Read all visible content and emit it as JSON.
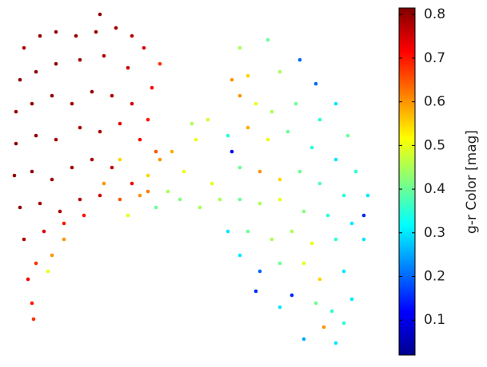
{
  "chart_data": {
    "type": "scatter",
    "colorbar_label": "g-r Color [mag]",
    "clim": [
      0.02,
      0.815
    ],
    "colorbar_ticks": [
      0.1,
      0.2,
      0.3,
      0.4,
      0.5,
      0.6,
      0.7,
      0.8
    ],
    "colormap": "jet",
    "xlim": [
      0,
      460
    ],
    "ylim": [
      0,
      430
    ],
    "x": [
      20,
      40,
      60,
      85,
      110,
      135,
      155,
      170,
      190,
      15,
      35,
      60,
      90,
      120,
      150,
      180,
      10,
      30,
      55,
      80,
      105,
      130,
      155,
      175,
      10,
      35,
      60,
      90,
      115,
      140,
      165,
      185,
      8,
      30,
      55,
      80,
      105,
      130,
      155,
      175,
      15,
      40,
      65,
      90,
      115,
      140,
      165,
      20,
      45,
      70,
      95,
      35,
      55,
      25,
      30,
      32,
      50,
      70,
      115,
      140,
      120,
      190,
      205,
      220,
      235,
      230,
      250,
      200,
      215,
      185,
      240,
      255,
      150,
      175,
      290,
      325,
      365,
      280,
      300,
      340,
      385,
      410,
      290,
      310,
      330,
      360,
      390,
      425,
      275,
      300,
      325,
      350,
      380,
      410,
      435,
      280,
      290,
      315,
      340,
      365,
      390,
      420,
      450,
      265,
      290,
      315,
      340,
      370,
      400,
      430,
      445,
      275,
      300,
      330,
      355,
      380,
      410,
      445,
      290,
      315,
      340,
      370,
      390,
      420,
      310,
      355,
      385,
      405,
      430,
      340,
      370,
      395,
      410,
      420
    ],
    "y": [
      380,
      395,
      400,
      395,
      400,
      405,
      395,
      380,
      360,
      340,
      350,
      360,
      365,
      370,
      355,
      330,
      300,
      310,
      320,
      310,
      325,
      320,
      310,
      290,
      260,
      270,
      265,
      280,
      275,
      285,
      265,
      250,
      220,
      225,
      215,
      230,
      240,
      230,
      210,
      200,
      180,
      185,
      175,
      190,
      195,
      190,
      195,
      140,
      150,
      160,
      170,
      110,
      120,
      90,
      60,
      40,
      100,
      140,
      422,
      240,
      210,
      240,
      250,
      225,
      265,
      285,
      290,
      200,
      190,
      180,
      180,
      210,
      170,
      220,
      380,
      390,
      365,
      340,
      345,
      350,
      335,
      310,
      320,
      310,
      300,
      310,
      290,
      270,
      270,
      280,
      265,
      275,
      255,
      240,
      225,
      250,
      230,
      225,
      215,
      225,
      210,
      195,
      195,
      190,
      190,
      185,
      190,
      175,
      170,
      160,
      170,
      150,
      150,
      140,
      150,
      135,
      140,
      140,
      120,
      100,
      110,
      110,
      90,
      100,
      75,
      70,
      60,
      50,
      65,
      55,
      15,
      30,
      10,
      35
    ],
    "c": [
      0.78,
      0.8,
      0.8,
      0.8,
      0.79,
      0.79,
      0.77,
      0.74,
      0.68,
      0.8,
      0.8,
      0.8,
      0.79,
      0.78,
      0.76,
      0.72,
      0.8,
      0.8,
      0.8,
      0.79,
      0.8,
      0.77,
      0.75,
      0.7,
      0.8,
      0.8,
      0.79,
      0.78,
      0.78,
      0.74,
      0.72,
      0.65,
      0.8,
      0.8,
      0.79,
      0.79,
      0.78,
      0.76,
      0.72,
      0.62,
      0.8,
      0.79,
      0.78,
      0.77,
      0.75,
      0.65,
      0.6,
      0.78,
      0.74,
      0.7,
      0.7,
      0.68,
      0.6,
      0.72,
      0.7,
      0.68,
      0.5,
      0.6,
      0.8,
      0.55,
      0.6,
      0.6,
      0.58,
      0.5,
      0.5,
      0.45,
      0.48,
      0.45,
      0.42,
      0.4,
      0.45,
      0.5,
      0.5,
      0.55,
      0.45,
      0.4,
      0.2,
      0.6,
      0.55,
      0.45,
      0.2,
      0.3,
      0.6,
      0.5,
      0.45,
      0.4,
      0.35,
      0.4,
      0.35,
      0.58,
      0.5,
      0.4,
      0.35,
      0.3,
      0.35,
      0.1,
      0.4,
      0.6,
      0.55,
      0.4,
      0.38,
      0.35,
      0.3,
      0.45,
      0.4,
      0.45,
      0.5,
      0.42,
      0.35,
      0.3,
      0.15,
      0.3,
      0.4,
      0.45,
      0.45,
      0.5,
      0.35,
      0.3,
      0.3,
      0.2,
      0.4,
      0.5,
      0.55,
      0.3,
      0.15,
      0.15,
      0.4,
      0.35,
      0.3,
      0.3,
      0.25,
      0.6,
      0.3,
      0.35
    ]
  }
}
